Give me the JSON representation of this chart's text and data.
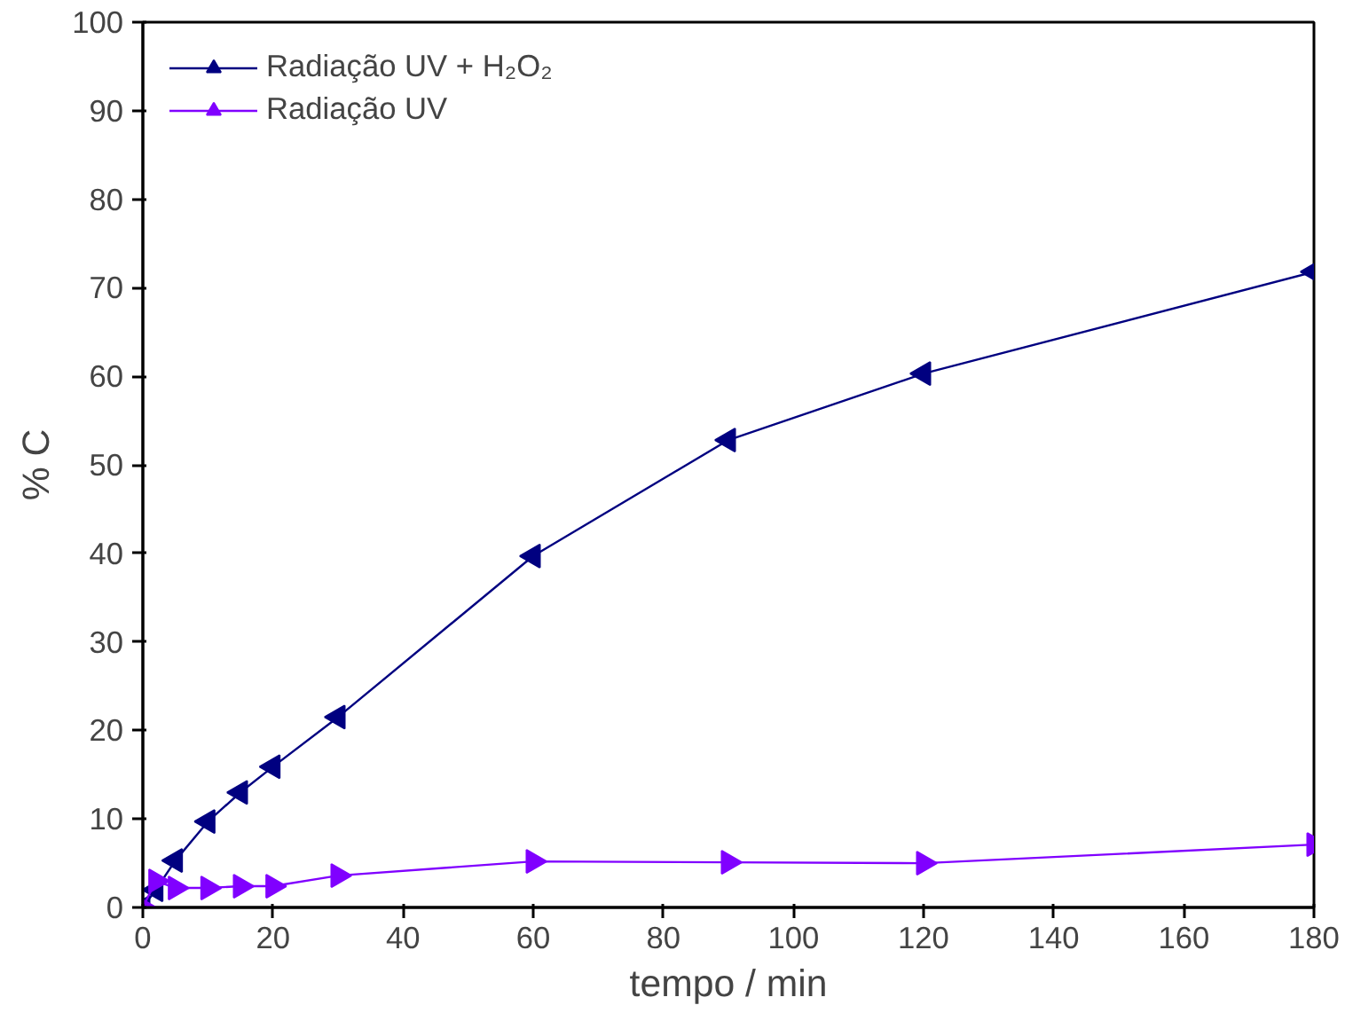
{
  "chart_data": {
    "type": "line",
    "xlabel": "tempo / min",
    "ylabel": "% C",
    "x": [
      0,
      2,
      5,
      10,
      15,
      20,
      30,
      60,
      90,
      120,
      180
    ],
    "series": [
      {
        "name": "Radiação UV + H₂O₂",
        "color": "#000080",
        "marker": "triangle",
        "values": [
          0,
          2,
          5.3,
          9.7,
          13,
          15.9,
          21.5,
          39.7,
          52.8,
          60.3,
          71.8
        ]
      },
      {
        "name": "Radiação UV",
        "color": "#8000ff",
        "marker": "triangle",
        "values": [
          0,
          3,
          2.2,
          2.2,
          2.4,
          2.4,
          3.6,
          5.2,
          5.1,
          5.0,
          7.1
        ]
      }
    ],
    "xlim": [
      0,
      180
    ],
    "ylim": [
      0,
      100
    ],
    "xticks": [
      0,
      20,
      40,
      60,
      80,
      100,
      120,
      140,
      160,
      180
    ],
    "yticks": [
      0,
      10,
      20,
      30,
      40,
      50,
      60,
      70,
      80,
      90,
      100
    ],
    "grid": false,
    "legend": "top left",
    "line_style": "solid"
  }
}
